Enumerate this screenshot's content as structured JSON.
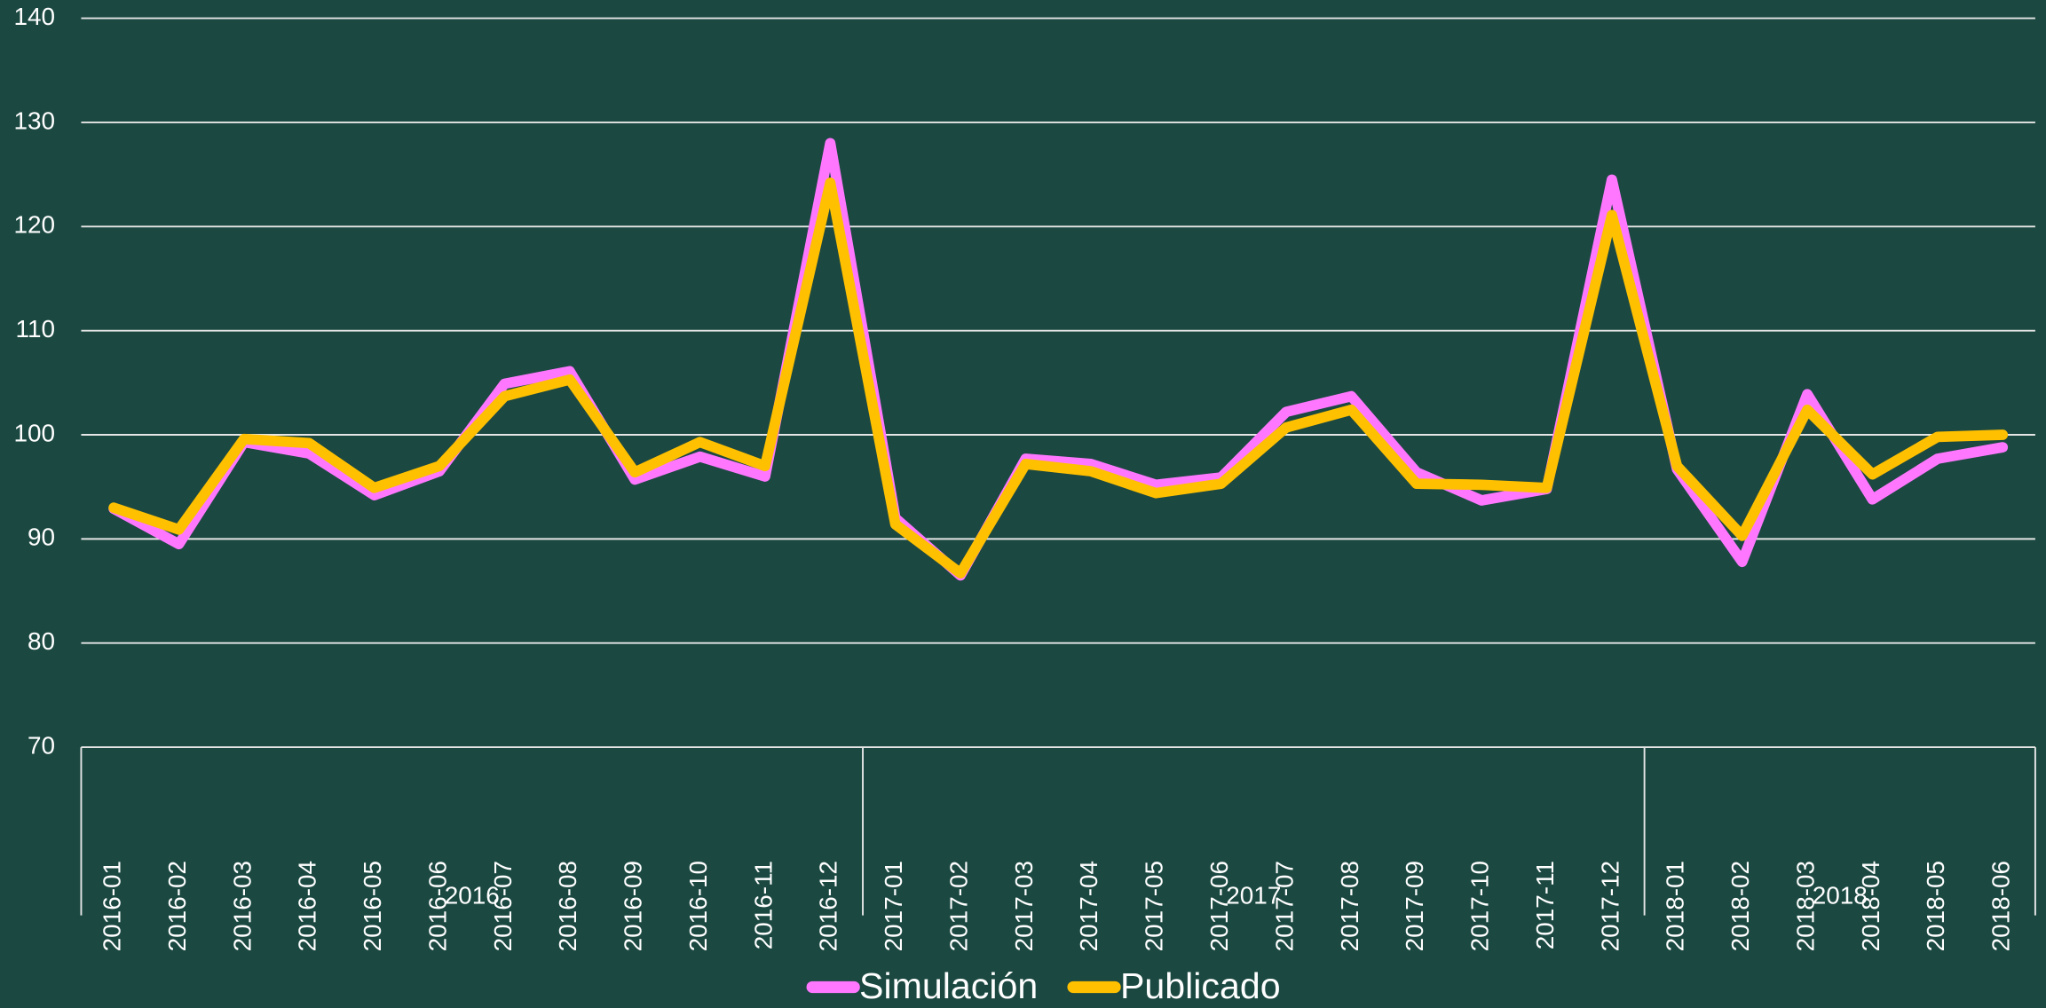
{
  "chart_data": {
    "type": "line",
    "categories": [
      "2016-01",
      "2016-02",
      "2016-03",
      "2016-04",
      "2016-05",
      "2016-06",
      "2016-07",
      "2016-08",
      "2016-09",
      "2016-10",
      "2016-11",
      "2016-12",
      "2017-01",
      "2017-02",
      "2017-03",
      "2017-04",
      "2017-05",
      "2017-06",
      "2017-07",
      "2017-08",
      "2017-09",
      "2017-10",
      "2017-11",
      "2017-12",
      "2018-01",
      "2018-02",
      "2018-03",
      "2018-04",
      "2018-05",
      "2018-06"
    ],
    "groups": [
      "2016",
      "2017",
      "2018"
    ],
    "series": [
      {
        "name": "Simulación",
        "color": "#ff77ff",
        "values": [
          92.9,
          89.5,
          99.3,
          98.2,
          94.2,
          96.5,
          104.9,
          106.1,
          95.7,
          97.9,
          96.0,
          128.0,
          92.0,
          86.5,
          97.7,
          97.2,
          95.2,
          95.9,
          102.2,
          103.7,
          96.4,
          93.7,
          94.8,
          124.5,
          96.7,
          87.8,
          103.9,
          93.8,
          97.7,
          98.8
        ]
      },
      {
        "name": "Publicado",
        "color": "#ffc000",
        "values": [
          93.0,
          90.9,
          99.6,
          99.2,
          94.9,
          97.0,
          103.7,
          105.3,
          96.4,
          99.3,
          97.0,
          124.2,
          91.4,
          86.7,
          97.2,
          96.5,
          94.4,
          95.3,
          100.7,
          102.4,
          95.3,
          95.2,
          94.9,
          121.1,
          97.0,
          90.3,
          102.4,
          96.2,
          99.8,
          100.0
        ]
      }
    ],
    "ylim": [
      70,
      140
    ],
    "yticks": [
      70,
      80,
      90,
      100,
      110,
      120,
      130,
      140
    ],
    "grid": true,
    "legend": "bottom"
  }
}
